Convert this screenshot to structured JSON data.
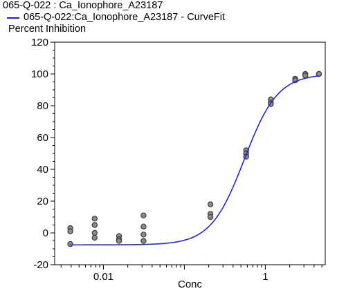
{
  "chart_data": {
    "type": "scatter",
    "title": "065-Q-022  : Ca_Ionophore_A23187",
    "curve_legend": "065-Q-022:Ca_Ionophore_A23187 - CurveFit",
    "xlabel": "Conc",
    "ylabel": "Percent Inhibition",
    "x_scale": "log",
    "xlim": [
      0.0025,
      5.5
    ],
    "ylim": [
      -20,
      120
    ],
    "x_ticks": [
      0.01,
      1
    ],
    "x_tick_labels": [
      "0.01",
      "1"
    ],
    "y_ticks": [
      -20,
      0,
      20,
      40,
      60,
      80,
      100,
      120
    ],
    "y_tick_labels": [
      "-20",
      "0",
      "20",
      "40",
      "60",
      "80",
      "100",
      "120"
    ],
    "grid": false,
    "legend_position": "top-left",
    "colors": {
      "curve": "#2424e0",
      "points_fill": "#8c8c8c",
      "points_stroke": "#3a3a3a",
      "frame": "#000000"
    },
    "series": [
      {
        "values": [
          {
            "x": 0.0039,
            "y": 3
          },
          {
            "x": 0.0039,
            "y": 1
          },
          {
            "x": 0.0039,
            "y": -7
          },
          {
            "x": 0.0078,
            "y": 9
          },
          {
            "x": 0.0078,
            "y": 5
          },
          {
            "x": 0.0078,
            "y": 0
          },
          {
            "x": 0.0078,
            "y": -3
          },
          {
            "x": 0.0156,
            "y": -2
          },
          {
            "x": 0.0156,
            "y": -4
          },
          {
            "x": 0.0156,
            "y": -5
          },
          {
            "x": 0.0313,
            "y": 11
          },
          {
            "x": 0.0313,
            "y": 4
          },
          {
            "x": 0.0313,
            "y": -1
          },
          {
            "x": 0.0313,
            "y": -5
          },
          {
            "x": 0.21,
            "y": 18
          },
          {
            "x": 0.21,
            "y": 12
          },
          {
            "x": 0.21,
            "y": 10
          },
          {
            "x": 0.58,
            "y": 52
          },
          {
            "x": 0.58,
            "y": 50
          },
          {
            "x": 0.58,
            "y": 48
          },
          {
            "x": 1.17,
            "y": 84
          },
          {
            "x": 1.17,
            "y": 82
          },
          {
            "x": 1.17,
            "y": 81
          },
          {
            "x": 2.34,
            "y": 97
          },
          {
            "x": 2.34,
            "y": 96
          },
          {
            "x": 3.12,
            "y": 100
          },
          {
            "x": 3.12,
            "y": 99
          },
          {
            "x": 4.6,
            "y": 100
          },
          {
            "x": 4.6,
            "y": 100
          }
        ]
      }
    ],
    "curve_fit": {
      "bottom": -7.5,
      "top": 100,
      "ec50": 0.55,
      "hill": 2.1,
      "x_start": 0.0039,
      "x_end": 4.6
    }
  }
}
